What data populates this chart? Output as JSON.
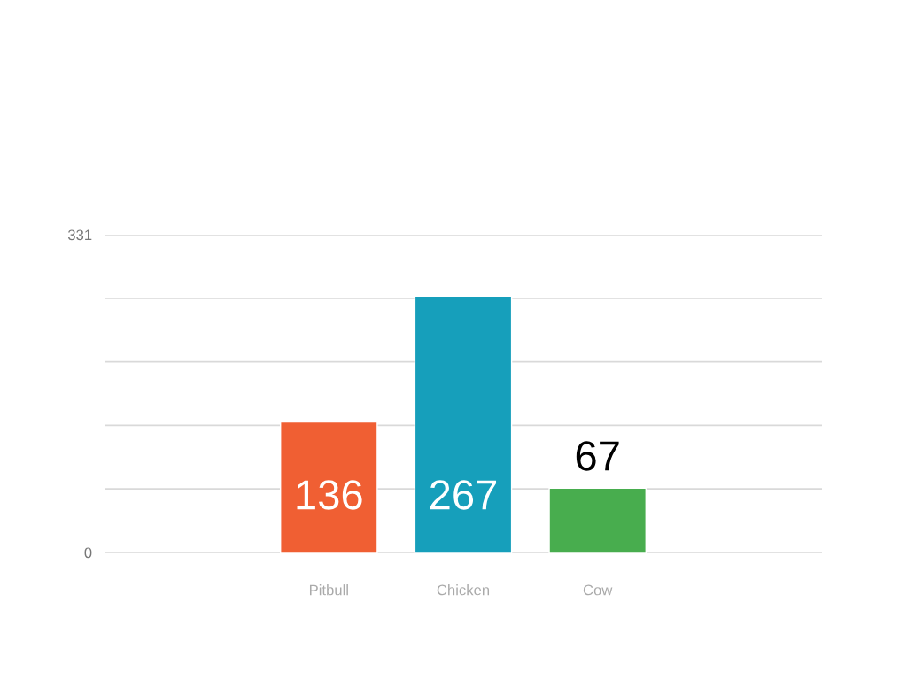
{
  "chart_data": {
    "type": "bar",
    "categories": [
      "Pitbull",
      "Chicken",
      "Cow"
    ],
    "values": [
      136,
      267,
      67
    ],
    "colors": [
      "#f05f33",
      "#169fbb",
      "#48ad4e"
    ],
    "ylim": [
      0,
      331
    ],
    "yticks": [
      0,
      {
        "value": 66.2,
        "label": null
      },
      {
        "value": 132.4,
        "label": null
      },
      {
        "value": 198.6,
        "label": null
      },
      {
        "value": 264.8,
        "label": null
      },
      331
    ],
    "grid": "y",
    "data_labels": true
  }
}
